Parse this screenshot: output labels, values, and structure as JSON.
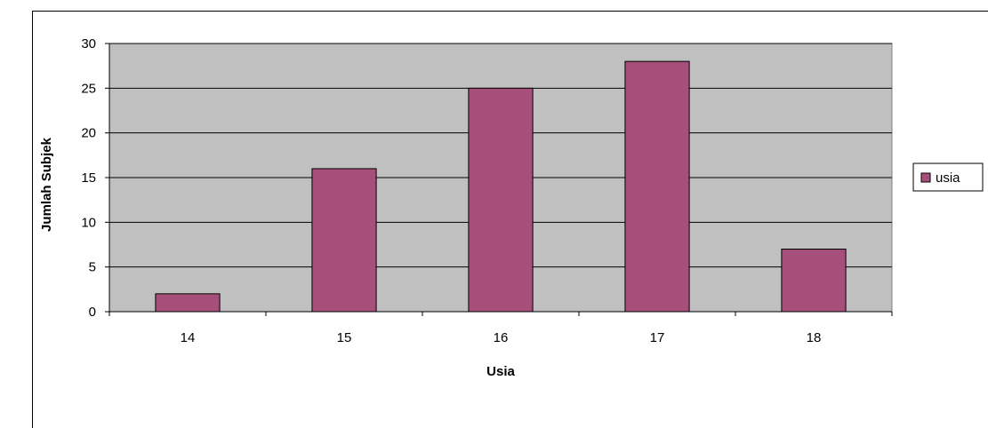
{
  "chart_data": {
    "type": "bar",
    "categories": [
      "14",
      "15",
      "16",
      "17",
      "18"
    ],
    "series": [
      {
        "name": "usia",
        "values": [
          2,
          16,
          25,
          28,
          7
        ]
      }
    ],
    "xlabel": "Usia",
    "ylabel": "Jumlah Subjek",
    "ylim": [
      0,
      30
    ],
    "yticks": [
      "0",
      "5",
      "10",
      "15",
      "20",
      "25",
      "30"
    ],
    "grid": true,
    "legend": "right",
    "colors": {
      "bar": "#A64F7A",
      "plot_background": "#C0C0C0",
      "gridline": "#000000"
    }
  }
}
